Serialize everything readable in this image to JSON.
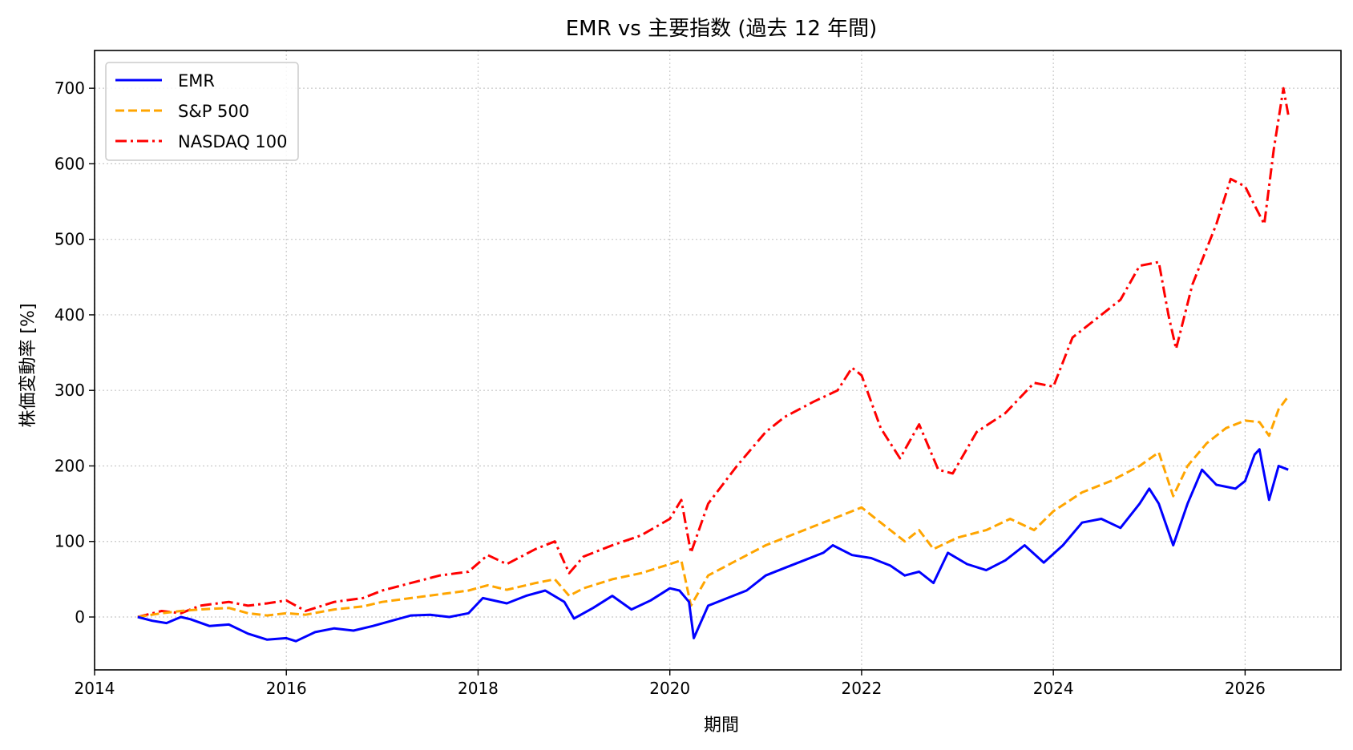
{
  "chart_data": {
    "type": "line",
    "title": "EMR vs 主要指数 (過去 12 年間)",
    "xlabel": "期間",
    "ylabel": "株価変動率 [%]",
    "xlim": [
      2014.0,
      2027.0
    ],
    "ylim": [
      -70,
      750
    ],
    "xticks": [
      2014,
      2016,
      2018,
      2020,
      2022,
      2024,
      2026
    ],
    "yticks": [
      0,
      100,
      200,
      300,
      400,
      500,
      600,
      700
    ],
    "grid": true,
    "legend_position": "top-left",
    "series": [
      {
        "name": "EMR",
        "color": "#0000ff",
        "style": "solid",
        "x": [
          2014.45,
          2014.6,
          2014.75,
          2014.9,
          2015.0,
          2015.2,
          2015.4,
          2015.6,
          2015.8,
          2016.0,
          2016.1,
          2016.3,
          2016.5,
          2016.7,
          2016.9,
          2017.1,
          2017.3,
          2017.5,
          2017.7,
          2017.9,
          2018.05,
          2018.3,
          2018.5,
          2018.7,
          2018.9,
          2019.0,
          2019.2,
          2019.4,
          2019.6,
          2019.8,
          2020.0,
          2020.1,
          2020.2,
          2020.25,
          2020.4,
          2020.6,
          2020.8,
          2021.0,
          2021.2,
          2021.4,
          2021.6,
          2021.7,
          2021.9,
          2022.1,
          2022.3,
          2022.45,
          2022.6,
          2022.75,
          2022.9,
          2023.1,
          2023.3,
          2023.5,
          2023.7,
          2023.9,
          2024.1,
          2024.3,
          2024.5,
          2024.7,
          2024.9,
          2025.0,
          2025.1,
          2025.25,
          2025.4,
          2025.55,
          2025.7,
          2025.9,
          2026.0,
          2026.1,
          2026.15,
          2026.25,
          2026.35,
          2026.45
        ],
        "values": [
          0,
          -5,
          -8,
          0,
          -3,
          -12,
          -10,
          -22,
          -30,
          -28,
          -32,
          -20,
          -15,
          -18,
          -12,
          -5,
          2,
          3,
          0,
          5,
          25,
          18,
          28,
          35,
          20,
          -2,
          12,
          28,
          10,
          22,
          38,
          35,
          20,
          -28,
          15,
          25,
          35,
          55,
          65,
          75,
          85,
          95,
          82,
          78,
          68,
          55,
          60,
          45,
          85,
          70,
          62,
          75,
          95,
          72,
          95,
          125,
          130,
          118,
          150,
          170,
          150,
          95,
          150,
          195,
          175,
          170,
          180,
          215,
          222,
          155,
          200,
          195
        ]
      },
      {
        "name": "S&P 500",
        "color": "#ffa500",
        "style": "dashed",
        "x": [
          2014.45,
          2014.7,
          2014.9,
          2015.1,
          2015.4,
          2015.6,
          2015.8,
          2016.0,
          2016.2,
          2016.5,
          2016.8,
          2017.0,
          2017.3,
          2017.6,
          2017.9,
          2018.1,
          2018.3,
          2018.6,
          2018.8,
          2018.95,
          2019.1,
          2019.4,
          2019.7,
          2020.0,
          2020.12,
          2020.22,
          2020.4,
          2020.7,
          2021.0,
          2021.3,
          2021.6,
          2021.9,
          2022.0,
          2022.2,
          2022.45,
          2022.6,
          2022.75,
          2023.0,
          2023.3,
          2023.55,
          2023.8,
          2024.0,
          2024.3,
          2024.6,
          2024.9,
          2025.1,
          2025.25,
          2025.4,
          2025.6,
          2025.8,
          2026.0,
          2026.15,
          2026.25,
          2026.35,
          2026.45
        ],
        "values": [
          0,
          5,
          8,
          10,
          12,
          5,
          2,
          5,
          3,
          10,
          14,
          20,
          25,
          30,
          35,
          42,
          36,
          45,
          50,
          28,
          38,
          50,
          58,
          70,
          75,
          15,
          55,
          75,
          95,
          110,
          125,
          140,
          145,
          125,
          100,
          115,
          90,
          105,
          115,
          130,
          115,
          140,
          165,
          180,
          200,
          218,
          160,
          200,
          230,
          250,
          260,
          258,
          240,
          275,
          292
        ]
      },
      {
        "name": "NASDAQ 100",
        "color": "#ff0000",
        "style": "dashdot",
        "x": [
          2014.45,
          2014.7,
          2014.9,
          2015.1,
          2015.4,
          2015.6,
          2015.8,
          2016.0,
          2016.2,
          2016.5,
          2016.8,
          2017.0,
          2017.3,
          2017.6,
          2017.9,
          2018.1,
          2018.3,
          2018.6,
          2018.8,
          2018.95,
          2019.1,
          2019.4,
          2019.7,
          2020.0,
          2020.12,
          2020.22,
          2020.4,
          2020.7,
          2021.0,
          2021.2,
          2021.5,
          2021.75,
          2021.9,
          2022.0,
          2022.2,
          2022.4,
          2022.6,
          2022.8,
          2022.95,
          2023.2,
          2023.5,
          2023.8,
          2024.0,
          2024.2,
          2024.5,
          2024.7,
          2024.9,
          2025.1,
          2025.2,
          2025.28,
          2025.45,
          2025.7,
          2025.85,
          2026.0,
          2026.1,
          2026.2,
          2026.3,
          2026.4,
          2026.45
        ],
        "values": [
          0,
          8,
          5,
          15,
          20,
          15,
          18,
          22,
          8,
          20,
          25,
          35,
          45,
          55,
          60,
          82,
          70,
          90,
          100,
          58,
          80,
          95,
          108,
          130,
          155,
          85,
          150,
          200,
          245,
          265,
          285,
          300,
          330,
          320,
          250,
          210,
          255,
          195,
          190,
          245,
          270,
          310,
          305,
          370,
          400,
          420,
          465,
          470,
          400,
          355,
          440,
          520,
          580,
          570,
          545,
          520,
          620,
          700,
          665
        ]
      }
    ]
  }
}
